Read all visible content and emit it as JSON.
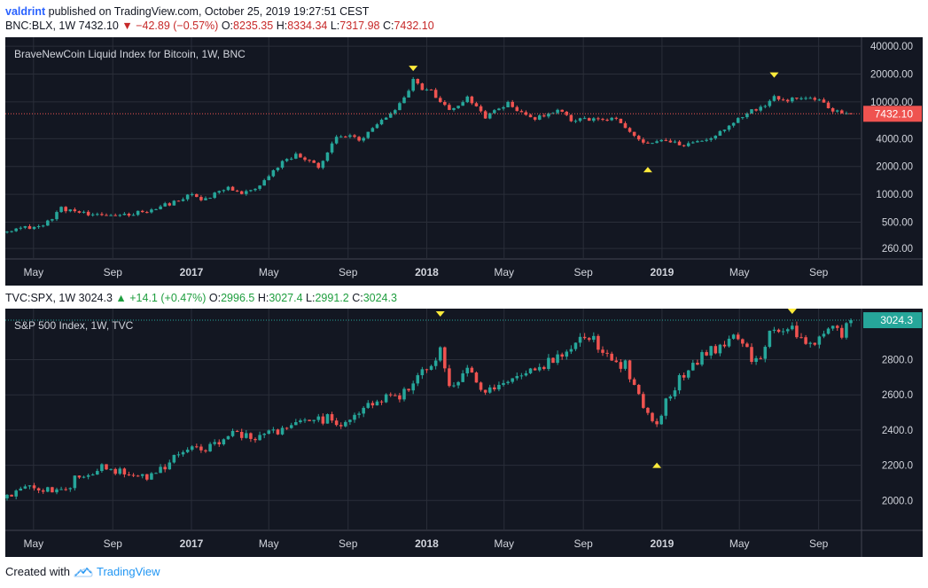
{
  "header": {
    "author": "valdrint",
    "published": "published on TradingView.com, October 25, 2019 19:27:51 CEST"
  },
  "btc": {
    "symbol": "BNC:BLX, 1W",
    "last": "7432.10",
    "change": "−42.89 (−0.57%)",
    "o_label": "O:",
    "o": "8235.35",
    "h_label": "H:",
    "h": "8334.34",
    "l_label": "L:",
    "l": "7317.98",
    "c_label": "C:",
    "c": "7432.10",
    "legend": "BraveNewCoin Liquid Index for Bitcoin, 1W, BNC"
  },
  "spx": {
    "symbol": "TVC:SPX, 1W",
    "last": "3024.3",
    "change": "+14.1 (+0.47%)",
    "o_label": "O:",
    "o": "2996.5",
    "h_label": "H:",
    "h": "3027.4",
    "l_label": "L:",
    "l": "2991.2",
    "c_label": "C:",
    "c": "3024.3",
    "legend": "S&P 500 Index, 1W, TVC"
  },
  "footer": {
    "created": "Created with",
    "brand": "TradingView"
  },
  "colors": {
    "background": "#131722",
    "grid": "#2a2e39",
    "up": "#26a69a",
    "down": "#ef5350",
    "marker": "#ffeb3b",
    "axis_text": "#d1d4dc",
    "btc_price_line": "#ef5350",
    "spx_price_line": "#26a69a"
  },
  "chart_data": [
    {
      "type": "candlestick",
      "title": "BraveNewCoin Liquid Index for Bitcoin, 1W, BNC",
      "scale": "log",
      "ylim": [
        200,
        50000
      ],
      "y_ticks": [
        260,
        500,
        1000,
        2000,
        4000,
        10000,
        20000,
        40000
      ],
      "y_tick_labels": [
        "260.00",
        "500.00",
        "1000.00",
        "2000.00",
        "4000.00",
        "10000.00",
        "20000.00",
        "40000.00"
      ],
      "last_price": 7432.1,
      "last_price_label": "7432.10",
      "x_range": [
        "2016-03-21",
        "2019-10-21"
      ],
      "x_ticks": [
        "2016-05-01",
        "2016-09-01",
        "2017-01-01",
        "2017-05-01",
        "2017-09-01",
        "2018-01-01",
        "2018-05-01",
        "2018-09-01",
        "2019-01-01",
        "2019-05-01",
        "2019-09-01"
      ],
      "x_tick_labels": [
        "May",
        "Sep",
        "2017",
        "May",
        "Sep",
        "2018",
        "May",
        "Sep",
        "2019",
        "May",
        "Sep"
      ],
      "anchors": [
        [
          "2016-03-21",
          415
        ],
        [
          "2016-05-16",
          455
        ],
        [
          "2016-06-13",
          700
        ],
        [
          "2016-07-04",
          660
        ],
        [
          "2016-08-01",
          580
        ],
        [
          "2016-09-26",
          610
        ],
        [
          "2016-11-07",
          705
        ],
        [
          "2016-12-19",
          900
        ],
        [
          "2017-01-02",
          1000
        ],
        [
          "2017-01-16",
          850
        ],
        [
          "2017-02-27",
          1180
        ],
        [
          "2017-03-20",
          1000
        ],
        [
          "2017-04-17",
          1250
        ],
        [
          "2017-05-22",
          2200
        ],
        [
          "2017-06-12",
          2700
        ],
        [
          "2017-07-17",
          2000
        ],
        [
          "2017-08-14",
          4100
        ],
        [
          "2017-09-04",
          4400
        ],
        [
          "2017-09-18",
          3700
        ],
        [
          "2017-10-16",
          5700
        ],
        [
          "2017-11-06",
          7200
        ],
        [
          "2017-11-27",
          10800
        ],
        [
          "2017-12-11",
          17500
        ],
        [
          "2017-12-25",
          14000
        ],
        [
          "2018-01-08",
          13000
        ],
        [
          "2018-02-05",
          8000
        ],
        [
          "2018-03-05",
          11000
        ],
        [
          "2018-04-02",
          6900
        ],
        [
          "2018-05-07",
          9600
        ],
        [
          "2018-06-11",
          6500
        ],
        [
          "2018-07-23",
          8200
        ],
        [
          "2018-08-13",
          6300
        ],
        [
          "2018-09-17",
          6500
        ],
        [
          "2018-10-22",
          6400
        ],
        [
          "2018-11-19",
          4300
        ],
        [
          "2018-12-10",
          3400
        ],
        [
          "2018-12-24",
          3900
        ],
        [
          "2019-02-04",
          3450
        ],
        [
          "2019-03-18",
          4000
        ],
        [
          "2019-04-08",
          5200
        ],
        [
          "2019-05-13",
          7800
        ],
        [
          "2019-06-03",
          8500
        ],
        [
          "2019-06-24",
          11500
        ],
        [
          "2019-07-15",
          10500
        ],
        [
          "2019-08-05",
          11500
        ],
        [
          "2019-09-02",
          10400
        ],
        [
          "2019-09-23",
          8200
        ],
        [
          "2019-10-21",
          7432
        ]
      ],
      "markers": [
        {
          "date": "2017-12-11",
          "dir": "down",
          "value": 23000
        },
        {
          "date": "2018-12-10",
          "dir": "up",
          "value": 1850
        },
        {
          "date": "2019-06-24",
          "dir": "down",
          "value": 19500
        }
      ]
    },
    {
      "type": "candlestick",
      "title": "S&P 500 Index, 1W, TVC",
      "scale": "linear",
      "ylim": [
        1830,
        3090
      ],
      "y_ticks": [
        2000,
        2200,
        2400,
        2600,
        2800
      ],
      "y_tick_labels": [
        "2000.0",
        "2200.0",
        "2400.0",
        "2600.0",
        "2800.0"
      ],
      "last_price": 3024.3,
      "last_price_label": "3024.3",
      "x_range": [
        "2016-03-21",
        "2019-10-21"
      ],
      "x_ticks": [
        "2016-05-01",
        "2016-09-01",
        "2017-01-01",
        "2017-05-01",
        "2017-09-01",
        "2018-01-01",
        "2018-05-01",
        "2018-09-01",
        "2019-01-01",
        "2019-05-01",
        "2019-09-01"
      ],
      "x_tick_labels": [
        "May",
        "Sep",
        "2017",
        "May",
        "Sep",
        "2018",
        "May",
        "Sep",
        "2019",
        "May",
        "Sep"
      ],
      "anchors": [
        [
          "2016-03-21",
          2030
        ],
        [
          "2016-04-25",
          2075
        ],
        [
          "2016-06-20",
          2050
        ],
        [
          "2016-07-04",
          2130
        ],
        [
          "2016-08-15",
          2180
        ],
        [
          "2016-09-05",
          2170
        ],
        [
          "2016-10-24",
          2130
        ],
        [
          "2016-11-14",
          2180
        ],
        [
          "2016-12-12",
          2260
        ],
        [
          "2017-02-06",
          2320
        ],
        [
          "2017-03-06",
          2380
        ],
        [
          "2017-04-17",
          2350
        ],
        [
          "2017-05-15",
          2400
        ],
        [
          "2017-06-19",
          2440
        ],
        [
          "2017-08-07",
          2470
        ],
        [
          "2017-08-21",
          2430
        ],
        [
          "2017-09-18",
          2500
        ],
        [
          "2017-10-23",
          2570
        ],
        [
          "2017-11-20",
          2600
        ],
        [
          "2017-12-18",
          2680
        ],
        [
          "2018-01-22",
          2860
        ],
        [
          "2018-02-05",
          2620
        ],
        [
          "2018-03-05",
          2780
        ],
        [
          "2018-04-02",
          2600
        ],
        [
          "2018-05-14",
          2720
        ],
        [
          "2018-06-18",
          2730
        ],
        [
          "2018-07-23",
          2820
        ],
        [
          "2018-08-27",
          2900
        ],
        [
          "2018-09-17",
          2920
        ],
        [
          "2018-10-15",
          2770
        ],
        [
          "2018-11-05",
          2780
        ],
        [
          "2018-11-19",
          2640
        ],
        [
          "2018-12-24",
          2420
        ],
        [
          "2019-01-07",
          2590
        ],
        [
          "2019-02-18",
          2780
        ],
        [
          "2019-04-01",
          2880
        ],
        [
          "2019-04-29",
          2940
        ],
        [
          "2019-05-27",
          2780
        ],
        [
          "2019-06-17",
          2950
        ],
        [
          "2019-07-22",
          3020
        ],
        [
          "2019-08-05",
          2900
        ],
        [
          "2019-08-26",
          2920
        ],
        [
          "2019-09-16",
          3000
        ],
        [
          "2019-10-07",
          2950
        ],
        [
          "2019-10-21",
          3024
        ]
      ],
      "markers": [
        {
          "date": "2018-01-22",
          "dir": "down",
          "value": 3060
        },
        {
          "date": "2018-12-24",
          "dir": "up",
          "value": 2200
        },
        {
          "date": "2019-07-22",
          "dir": "down",
          "value": 3075
        }
      ]
    }
  ]
}
